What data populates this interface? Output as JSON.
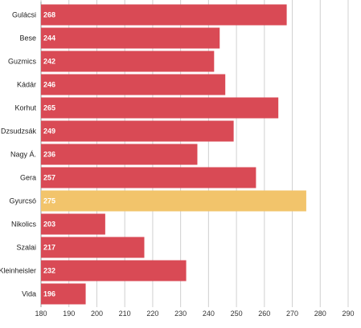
{
  "chart_data": {
    "type": "bar",
    "orientation": "horizontal",
    "title": "",
    "xlabel": "",
    "ylabel": "",
    "xlim": [
      180,
      290
    ],
    "x_ticks": [
      180,
      190,
      200,
      210,
      220,
      230,
      240,
      250,
      260,
      270,
      280,
      290
    ],
    "grid": true,
    "data_labels": true,
    "categories": [
      "Gulácsi",
      "Bese",
      "Guzmics",
      "Kádár",
      "Korhut",
      "Dzsudzsák",
      "Nagy Á.",
      "Gera",
      "Gyurcsó",
      "Nikolics",
      "Szalai",
      "Kleinheisler",
      "Vida"
    ],
    "values": [
      268,
      244,
      242,
      246,
      265,
      249,
      236,
      257,
      275,
      203,
      217,
      232,
      196
    ],
    "bar_colors": [
      "#d94a55",
      "#d94a55",
      "#d94a55",
      "#d94a55",
      "#d94a55",
      "#d94a55",
      "#d94a55",
      "#d94a55",
      "#f2c46b",
      "#d94a55",
      "#d94a55",
      "#d94a55",
      "#d94a55"
    ]
  }
}
